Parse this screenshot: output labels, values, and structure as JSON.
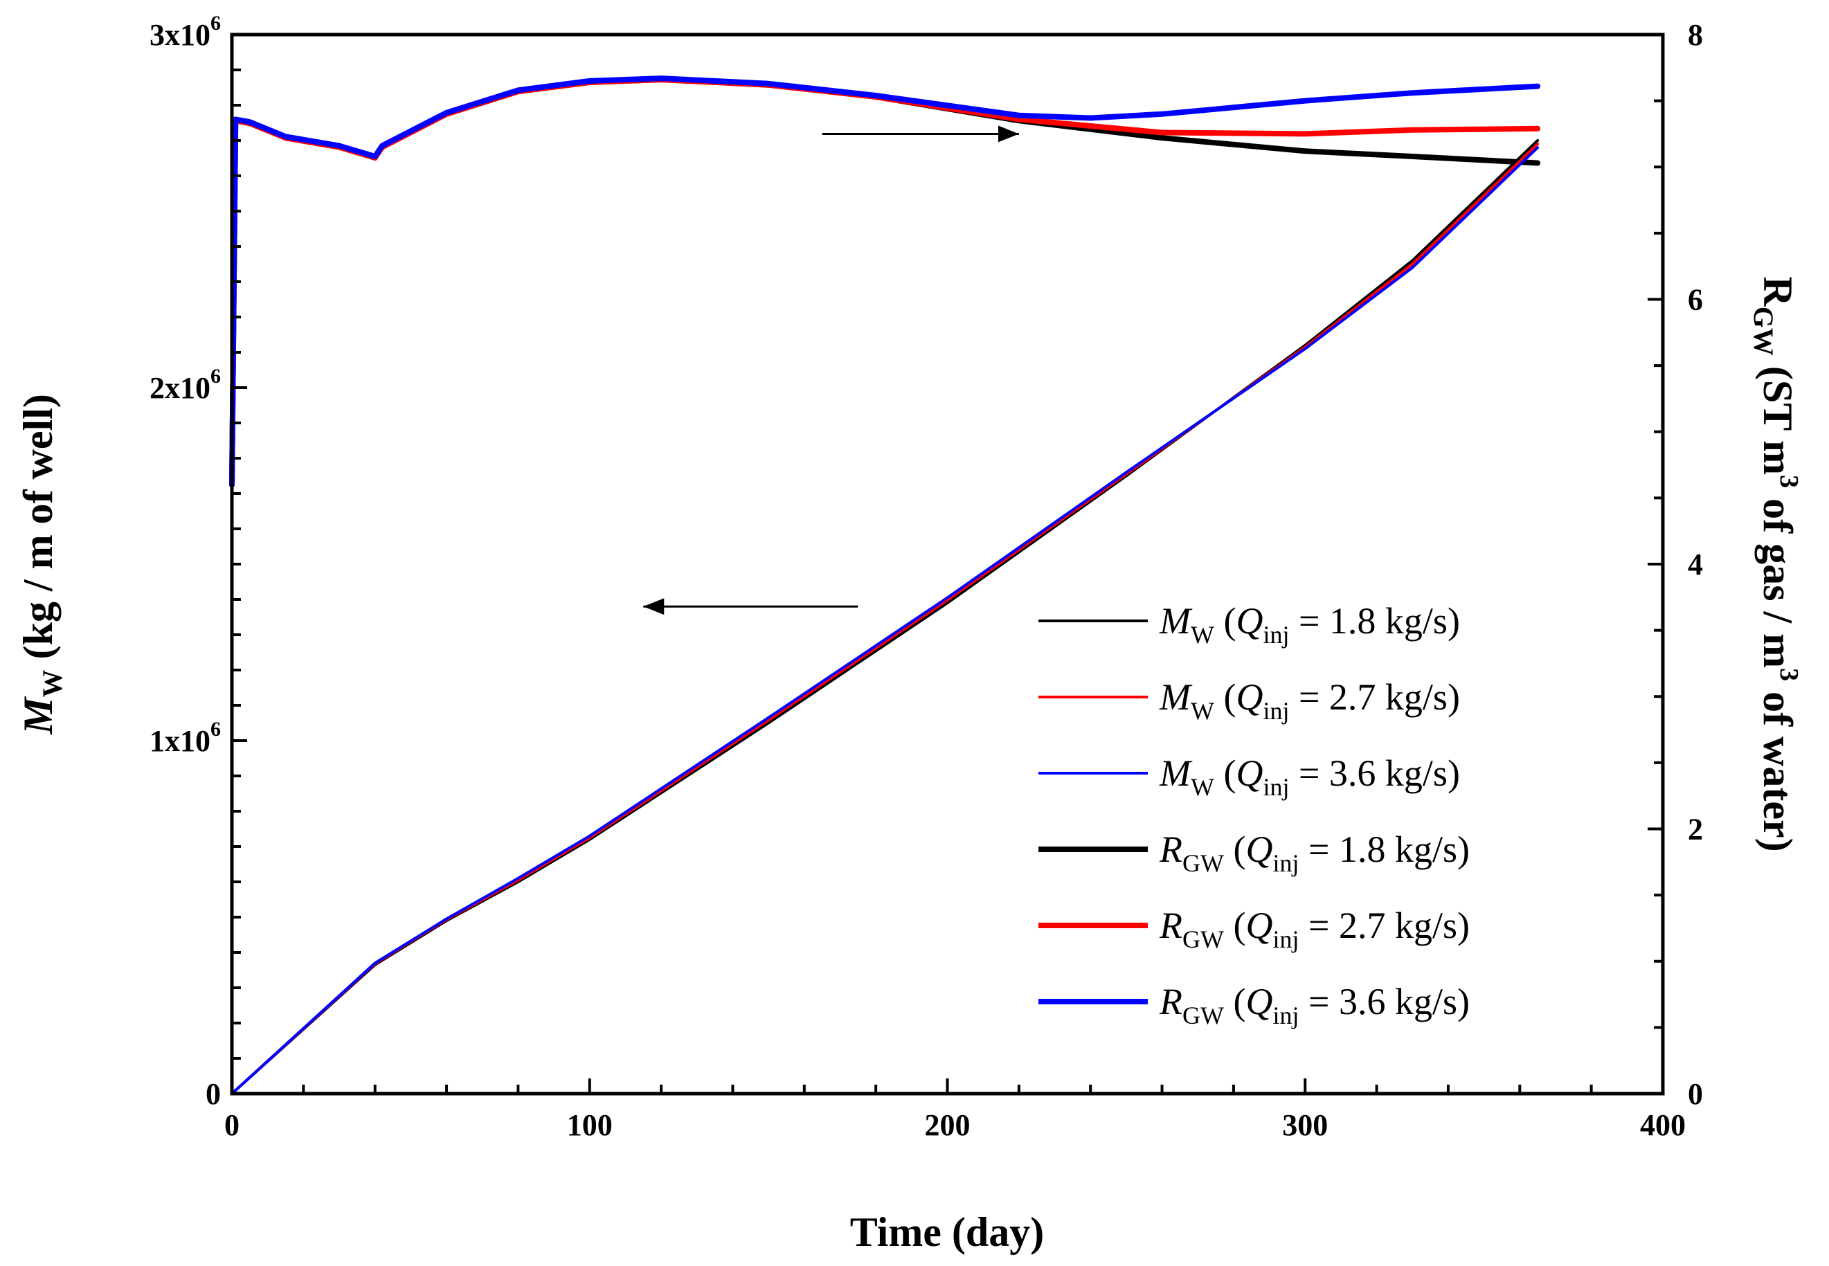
{
  "chart_data": {
    "type": "line",
    "xlabel": "Time (day)",
    "x_ticks": [
      "0",
      "100",
      "200",
      "300",
      "400"
    ],
    "xlim": [
      0,
      400
    ],
    "left_axis": {
      "label_prefix": "M",
      "label_sub": "W",
      "label_rest": " (kg / m of well)",
      "ylim": [
        0,
        3000000
      ],
      "ticks": [
        {
          "base": "0",
          "exp": ""
        },
        {
          "base": "1x10",
          "exp": "6"
        },
        {
          "base": "2x10",
          "exp": "6"
        },
        {
          "base": "3x10",
          "exp": "6"
        }
      ]
    },
    "right_axis": {
      "label_prefix": "R",
      "label_sub": "GW",
      "label_rest_a": " (ST m",
      "label_sup": "3",
      "label_rest_b": " of gas / m",
      "label_rest_c": " of water)",
      "ylim": [
        0,
        8
      ],
      "ticks": [
        "0",
        "2",
        "4",
        "6",
        "8"
      ]
    },
    "series": [
      {
        "name": "M_W (Q_inj = 1.8 kg/s)",
        "axis": "left",
        "color": "#000000",
        "width": 4,
        "x": [
          0,
          40,
          60,
          80,
          100,
          150,
          200,
          250,
          300,
          330,
          365
        ],
        "y": [
          0,
          365000,
          490000,
          600000,
          720000,
          1050000,
          1390000,
          1750000,
          2120000,
          2360000,
          2700000
        ]
      },
      {
        "name": "M_W (Q_inj = 2.7 kg/s)",
        "axis": "left",
        "color": "#ff0000",
        "width": 4,
        "x": [
          0,
          40,
          60,
          80,
          100,
          150,
          200,
          250,
          300,
          330,
          365
        ],
        "y": [
          0,
          368000,
          493000,
          605000,
          725000,
          1058000,
          1398000,
          1755000,
          2115000,
          2350000,
          2690000
        ]
      },
      {
        "name": "M_W (Q_inj = 3.6 kg/s)",
        "axis": "left",
        "color": "#0000ff",
        "width": 4,
        "x": [
          0,
          40,
          60,
          80,
          100,
          150,
          200,
          250,
          300,
          330,
          365
        ],
        "y": [
          0,
          370000,
          495000,
          610000,
          730000,
          1065000,
          1405000,
          1760000,
          2110000,
          2340000,
          2680000
        ]
      },
      {
        "name": "R_GW (Q_inj = 1.8 kg/s)",
        "axis": "right",
        "color": "#000000",
        "width": 8,
        "x": [
          0,
          1,
          5,
          15,
          30,
          40,
          42,
          60,
          80,
          100,
          120,
          150,
          180,
          220,
          260,
          300,
          330,
          365
        ],
        "y": [
          4.6,
          7.35,
          7.33,
          7.22,
          7.15,
          7.07,
          7.15,
          7.4,
          7.57,
          7.64,
          7.66,
          7.62,
          7.53,
          7.35,
          7.22,
          7.12,
          7.08,
          7.03
        ]
      },
      {
        "name": "R_GW (Q_inj = 2.7 kg/s)",
        "axis": "right",
        "color": "#ff0000",
        "width": 8,
        "x": [
          0,
          1,
          5,
          15,
          30,
          40,
          42,
          60,
          80,
          100,
          120,
          150,
          180,
          220,
          260,
          300,
          330,
          365
        ],
        "y": [
          4.6,
          7.35,
          7.33,
          7.22,
          7.15,
          7.07,
          7.15,
          7.4,
          7.57,
          7.64,
          7.66,
          7.62,
          7.53,
          7.36,
          7.26,
          7.25,
          7.28,
          7.29
        ]
      },
      {
        "name": "R_GW (Q_inj = 3.6 kg/s)",
        "axis": "right",
        "color": "#0000ff",
        "width": 8,
        "x": [
          0,
          1,
          5,
          15,
          30,
          40,
          42,
          60,
          80,
          100,
          120,
          150,
          180,
          220,
          240,
          260,
          300,
          330,
          365
        ],
        "y": [
          4.6,
          7.36,
          7.34,
          7.23,
          7.16,
          7.08,
          7.16,
          7.41,
          7.58,
          7.65,
          7.67,
          7.63,
          7.54,
          7.39,
          7.37,
          7.4,
          7.5,
          7.56,
          7.61
        ]
      }
    ],
    "legend": {
      "placement": "bottom-right",
      "entries": [
        {
          "letter": "M",
          "sub": "W",
          "q": "Q",
          "qsub": "inj",
          "value": " = 1.8 kg/s)",
          "color": "#000000",
          "width": 4
        },
        {
          "letter": "M",
          "sub": "W",
          "q": "Q",
          "qsub": "inj",
          "value": " = 2.7 kg/s)",
          "color": "#ff0000",
          "width": 4
        },
        {
          "letter": "M",
          "sub": "W",
          "q": "Q",
          "qsub": "inj",
          "value": " = 3.6 kg/s)",
          "color": "#0000ff",
          "width": 4
        },
        {
          "letter": "R",
          "sub": "GW",
          "q": "Q",
          "qsub": "inj",
          "value": " = 1.8 kg/s)",
          "color": "#000000",
          "width": 8
        },
        {
          "letter": "R",
          "sub": "GW",
          "q": "Q",
          "qsub": "inj",
          "value": " = 2.7 kg/s)",
          "color": "#ff0000",
          "width": 8
        },
        {
          "letter": "R",
          "sub": "GW",
          "q": "Q",
          "qsub": "inj",
          "value": " = 3.6 kg/s)",
          "color": "#0000ff",
          "width": 8
        }
      ]
    },
    "annotations": [
      {
        "type": "arrow",
        "direction": "right",
        "points_to": "right axis",
        "from": [
          165,
          7.25
        ],
        "to": [
          220,
          7.25
        ]
      },
      {
        "type": "arrow",
        "direction": "left",
        "points_to": "left axis",
        "from": [
          175,
          1380000
        ],
        "to": [
          115,
          1380000
        ]
      }
    ]
  }
}
